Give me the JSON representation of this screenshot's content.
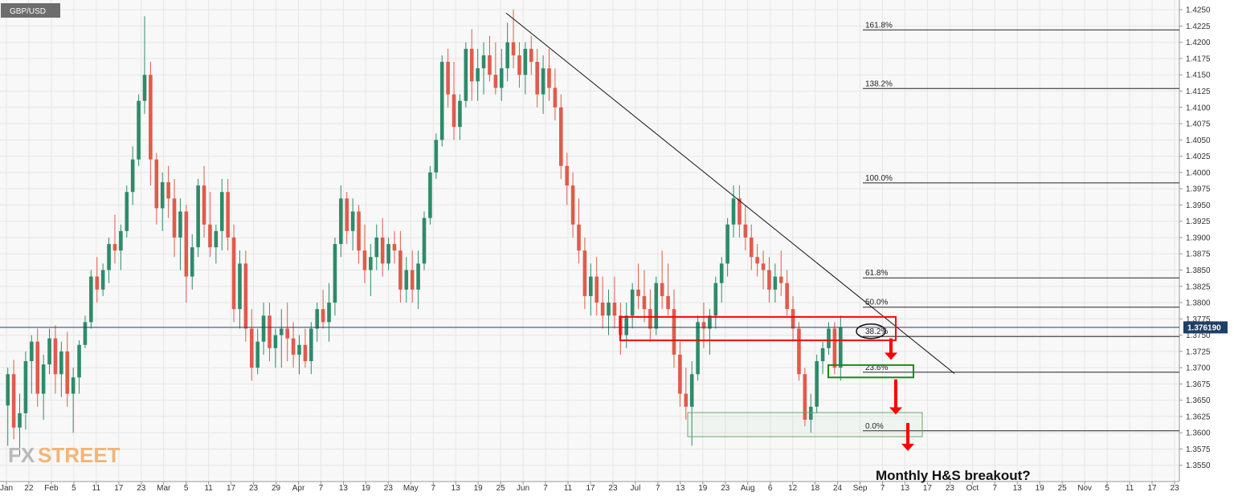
{
  "symbol": "GBP/USD",
  "current_price_label": "1.376190",
  "annotation": "Monthly H&S breakout?",
  "logo": {
    "part1": "FX",
    "part2": "STREET"
  },
  "colors": {
    "up": "#2e8b6a",
    "down": "#e05b4b",
    "zone_red": "#ff0000",
    "zone_green": "#1a8a1a",
    "arrow": "#ff0000",
    "price_line": "#1f3f66",
    "grid": "#e6e6e6",
    "plot_bg": "#f8f8f8"
  },
  "chart_data": {
    "type": "candlestick",
    "title": "",
    "ylim": [
      1.3525,
      1.4265
    ],
    "y_ticks": [
      "1.4250",
      "1.4225",
      "1.4200",
      "1.4175",
      "1.4150",
      "1.4125",
      "1.4100",
      "1.4075",
      "1.4050",
      "1.4025",
      "1.4000",
      "1.3975",
      "1.3950",
      "1.3925",
      "1.3900",
      "1.3875",
      "1.3850",
      "1.3825",
      "1.3800",
      "1.3775",
      "1.3750",
      "1.3725",
      "1.3700",
      "1.3675",
      "1.3650",
      "1.3625",
      "1.3600",
      "1.3575",
      "1.3550"
    ],
    "x_ticks": [
      "Jan",
      "22",
      "Feb",
      "5",
      "11",
      "17",
      "23",
      "Mar",
      "5",
      "11",
      "17",
      "23",
      "29",
      "Apr",
      "7",
      "13",
      "19",
      "23",
      "May",
      "7",
      "13",
      "19",
      "25",
      "Jun",
      "7",
      "11",
      "17",
      "23",
      "Jul",
      "7",
      "13",
      "19",
      "23",
      "Aug",
      "6",
      "12",
      "18",
      "24",
      "Sep",
      "7",
      "13",
      "17",
      "23",
      "Oct",
      "7",
      "13",
      "19",
      "25",
      "Nov",
      "5",
      "11",
      "17",
      "23"
    ],
    "current_price": 1.37619,
    "fib_levels": [
      {
        "label": "161.8%",
        "value": 1.4219
      },
      {
        "label": "138.2%",
        "value": 1.4129
      },
      {
        "label": "100.0%",
        "value": 1.3984
      },
      {
        "label": "61.8%",
        "value": 1.3838
      },
      {
        "label": "50.0%",
        "value": 1.3793
      },
      {
        "label": "38.2%",
        "value": 1.3748
      },
      {
        "label": "23.6%",
        "value": 1.3693
      },
      {
        "label": "0.0%",
        "value": 1.3603
      }
    ],
    "trendline": {
      "from": [
        1.4245
      ],
      "to": [
        1.3691
      ]
    },
    "candles": [
      [
        1.3642,
        1.37,
        1.358,
        1.369
      ],
      [
        1.369,
        1.3712,
        1.359,
        1.3608
      ],
      [
        1.3608,
        1.366,
        1.3565,
        1.363
      ],
      [
        1.363,
        1.3725,
        1.3605,
        1.371
      ],
      [
        1.371,
        1.375,
        1.366,
        1.374
      ],
      [
        1.374,
        1.376,
        1.364,
        1.366
      ],
      [
        1.366,
        1.372,
        1.362,
        1.3705
      ],
      [
        1.3705,
        1.376,
        1.369,
        1.3745
      ],
      [
        1.3745,
        1.3765,
        1.366,
        1.369
      ],
      [
        1.369,
        1.374,
        1.3655,
        1.3725
      ],
      [
        1.3725,
        1.3755,
        1.364,
        1.366
      ],
      [
        1.366,
        1.37,
        1.36,
        1.3685
      ],
      [
        1.3685,
        1.3742,
        1.366,
        1.3735
      ],
      [
        1.3735,
        1.378,
        1.373,
        1.377
      ],
      [
        1.377,
        1.385,
        1.376,
        1.384
      ],
      [
        1.384,
        1.387,
        1.38,
        1.382
      ],
      [
        1.382,
        1.386,
        1.381,
        1.385
      ],
      [
        1.385,
        1.39,
        1.383,
        1.389
      ],
      [
        1.389,
        1.3935,
        1.386,
        1.388
      ],
      [
        1.388,
        1.392,
        1.385,
        1.391
      ],
      [
        1.391,
        1.398,
        1.39,
        1.397
      ],
      [
        1.397,
        1.404,
        1.395,
        1.402
      ],
      [
        1.402,
        1.412,
        1.401,
        1.411
      ],
      [
        1.411,
        1.424,
        1.409,
        1.415
      ],
      [
        1.415,
        1.417,
        1.398,
        1.402
      ],
      [
        1.402,
        1.403,
        1.392,
        1.3945
      ],
      [
        1.3945,
        1.4,
        1.391,
        1.3985
      ],
      [
        1.3985,
        1.401,
        1.393,
        1.396
      ],
      [
        1.396,
        1.399,
        1.387,
        1.39
      ],
      [
        1.39,
        1.396,
        1.385,
        1.394
      ],
      [
        1.394,
        1.395,
        1.38,
        1.384
      ],
      [
        1.384,
        1.3905,
        1.382,
        1.3885
      ],
      [
        1.3885,
        1.399,
        1.387,
        1.398
      ],
      [
        1.398,
        1.401,
        1.39,
        1.392
      ],
      [
        1.392,
        1.397,
        1.387,
        1.3885
      ],
      [
        1.3885,
        1.392,
        1.386,
        1.391
      ],
      [
        1.391,
        1.399,
        1.388,
        1.397
      ],
      [
        1.397,
        1.399,
        1.388,
        1.39
      ],
      [
        1.39,
        1.392,
        1.377,
        1.379
      ],
      [
        1.379,
        1.388,
        1.376,
        1.386
      ],
      [
        1.386,
        1.388,
        1.374,
        1.376
      ],
      [
        1.376,
        1.379,
        1.368,
        1.37
      ],
      [
        1.37,
        1.376,
        1.369,
        1.374
      ],
      [
        1.374,
        1.38,
        1.372,
        1.378
      ],
      [
        1.378,
        1.38,
        1.371,
        1.373
      ],
      [
        1.373,
        1.376,
        1.37,
        1.375
      ],
      [
        1.375,
        1.379,
        1.37,
        1.376
      ],
      [
        1.376,
        1.38,
        1.371,
        1.3745
      ],
      [
        1.3745,
        1.377,
        1.37,
        1.372
      ],
      [
        1.372,
        1.375,
        1.369,
        1.3735
      ],
      [
        1.3735,
        1.376,
        1.37,
        1.371
      ],
      [
        1.371,
        1.377,
        1.369,
        1.376
      ],
      [
        1.376,
        1.38,
        1.374,
        1.379
      ],
      [
        1.379,
        1.382,
        1.376,
        1.377
      ],
      [
        1.377,
        1.383,
        1.374,
        1.38
      ],
      [
        1.38,
        1.39,
        1.378,
        1.389
      ],
      [
        1.389,
        1.398,
        1.387,
        1.396
      ],
      [
        1.396,
        1.397,
        1.389,
        1.391
      ],
      [
        1.391,
        1.396,
        1.388,
        1.394
      ],
      [
        1.394,
        1.395,
        1.386,
        1.388
      ],
      [
        1.388,
        1.392,
        1.383,
        1.385
      ],
      [
        1.385,
        1.389,
        1.381,
        1.387
      ],
      [
        1.387,
        1.392,
        1.385,
        1.39
      ],
      [
        1.39,
        1.393,
        1.384,
        1.386
      ],
      [
        1.386,
        1.39,
        1.385,
        1.389
      ],
      [
        1.389,
        1.391,
        1.386,
        1.388
      ],
      [
        1.388,
        1.391,
        1.38,
        1.382
      ],
      [
        1.382,
        1.387,
        1.38,
        1.385
      ],
      [
        1.385,
        1.388,
        1.38,
        1.382
      ],
      [
        1.382,
        1.388,
        1.379,
        1.386
      ],
      [
        1.386,
        1.394,
        1.385,
        1.393
      ],
      [
        1.393,
        1.401,
        1.392,
        1.4
      ],
      [
        1.4,
        1.406,
        1.399,
        1.405
      ],
      [
        1.405,
        1.418,
        1.404,
        1.417
      ],
      [
        1.417,
        1.419,
        1.41,
        1.412
      ],
      [
        1.412,
        1.417,
        1.405,
        1.407
      ],
      [
        1.407,
        1.412,
        1.405,
        1.411
      ],
      [
        1.411,
        1.42,
        1.41,
        1.419
      ],
      [
        1.419,
        1.422,
        1.411,
        1.414
      ],
      [
        1.414,
        1.419,
        1.411,
        1.416
      ],
      [
        1.416,
        1.42,
        1.412,
        1.418
      ],
      [
        1.418,
        1.421,
        1.414,
        1.415
      ],
      [
        1.415,
        1.42,
        1.412,
        1.413
      ],
      [
        1.413,
        1.419,
        1.411,
        1.416
      ],
      [
        1.416,
        1.423,
        1.414,
        1.42
      ],
      [
        1.42,
        1.425,
        1.416,
        1.418
      ],
      [
        1.418,
        1.42,
        1.413,
        1.415
      ],
      [
        1.415,
        1.42,
        1.412,
        1.419
      ],
      [
        1.419,
        1.421,
        1.415,
        1.417
      ],
      [
        1.417,
        1.419,
        1.41,
        1.412
      ],
      [
        1.412,
        1.418,
        1.409,
        1.416
      ],
      [
        1.416,
        1.419,
        1.411,
        1.413
      ],
      [
        1.413,
        1.416,
        1.408,
        1.41
      ],
      [
        1.41,
        1.412,
        1.399,
        1.401
      ],
      [
        1.401,
        1.403,
        1.395,
        1.398
      ],
      [
        1.398,
        1.4,
        1.39,
        1.392
      ],
      [
        1.392,
        1.396,
        1.386,
        1.388
      ],
      [
        1.388,
        1.39,
        1.379,
        1.381
      ],
      [
        1.381,
        1.386,
        1.378,
        1.384
      ],
      [
        1.384,
        1.387,
        1.378,
        1.38
      ],
      [
        1.38,
        1.384,
        1.376,
        1.378
      ],
      [
        1.378,
        1.382,
        1.375,
        1.38
      ],
      [
        1.38,
        1.384,
        1.376,
        1.378
      ],
      [
        1.378,
        1.38,
        1.372,
        1.375
      ],
      [
        1.375,
        1.38,
        1.373,
        1.378
      ],
      [
        1.378,
        1.383,
        1.376,
        1.382
      ],
      [
        1.382,
        1.386,
        1.379,
        1.381
      ],
      [
        1.381,
        1.385,
        1.377,
        1.379
      ],
      [
        1.379,
        1.382,
        1.374,
        1.376
      ],
      [
        1.376,
        1.384,
        1.375,
        1.383
      ],
      [
        1.383,
        1.388,
        1.379,
        1.381
      ],
      [
        1.381,
        1.386,
        1.378,
        1.379
      ],
      [
        1.379,
        1.382,
        1.37,
        1.372
      ],
      [
        1.372,
        1.374,
        1.364,
        1.366
      ],
      [
        1.366,
        1.37,
        1.362,
        1.364
      ],
      [
        1.364,
        1.371,
        1.358,
        1.369
      ],
      [
        1.369,
        1.378,
        1.368,
        1.377
      ],
      [
        1.377,
        1.38,
        1.373,
        1.376
      ],
      [
        1.376,
        1.379,
        1.372,
        1.378
      ],
      [
        1.378,
        1.384,
        1.376,
        1.383
      ],
      [
        1.383,
        1.387,
        1.38,
        1.386
      ],
      [
        1.386,
        1.393,
        1.384,
        1.392
      ],
      [
        1.392,
        1.398,
        1.39,
        1.396
      ],
      [
        1.396,
        1.398,
        1.39,
        1.392
      ],
      [
        1.392,
        1.395,
        1.388,
        1.39
      ],
      [
        1.39,
        1.392,
        1.385,
        1.387
      ],
      [
        1.387,
        1.389,
        1.384,
        1.386
      ],
      [
        1.386,
        1.388,
        1.382,
        1.385
      ],
      [
        1.385,
        1.387,
        1.38,
        1.382
      ],
      [
        1.382,
        1.386,
        1.38,
        1.384
      ],
      [
        1.384,
        1.388,
        1.381,
        1.383
      ],
      [
        1.383,
        1.385,
        1.378,
        1.379
      ],
      [
        1.379,
        1.381,
        1.374,
        1.376
      ],
      [
        1.376,
        1.377,
        1.368,
        1.369
      ],
      [
        1.369,
        1.37,
        1.361,
        1.362
      ],
      [
        1.362,
        1.366,
        1.36,
        1.364
      ],
      [
        1.364,
        1.372,
        1.363,
        1.371
      ],
      [
        1.371,
        1.374,
        1.369,
        1.373
      ],
      [
        1.373,
        1.377,
        1.372,
        1.376
      ],
      [
        1.376,
        1.377,
        1.369,
        1.37
      ],
      [
        1.37,
        1.378,
        1.368,
        1.3762
      ]
    ]
  }
}
